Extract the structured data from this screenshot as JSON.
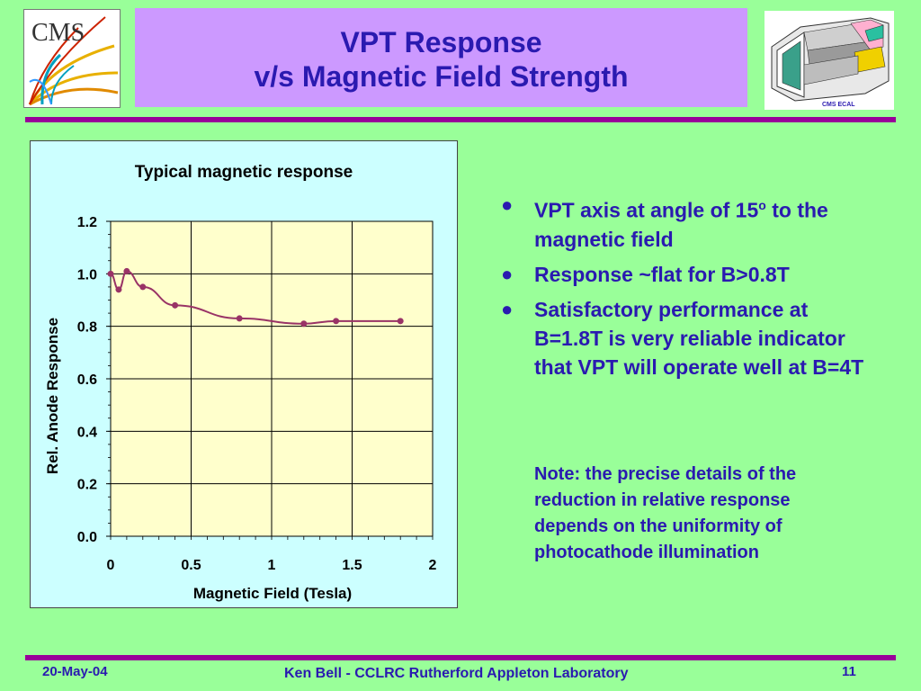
{
  "logo": {
    "text": "CMS",
    "icon": "cms-logo"
  },
  "header": {
    "title_line1": "VPT Response",
    "title_line2": "v/s Magnetic Field Strength",
    "image_icon": "cms-ecal-detector-image",
    "image_caption": "CMS ECAL"
  },
  "colors": {
    "background": "#99ff99",
    "title_box": "#cc99ff",
    "text": "#2a1ab0",
    "rule": "#990099",
    "chart_panel": "#ccffff",
    "plot_area": "#ffffcc",
    "series": "#993366"
  },
  "chart_data": {
    "type": "line",
    "title": "Typical magnetic response",
    "xlabel": "Magnetic Field (Tesla)",
    "ylabel": "Rel. Anode Response",
    "xlim": [
      0,
      2
    ],
    "ylim": [
      0.0,
      1.2
    ],
    "x_ticks": [
      "0",
      "0.5",
      "1",
      "1.5",
      "2"
    ],
    "y_ticks": [
      "0.0",
      "0.2",
      "0.4",
      "0.6",
      "0.8",
      "1.0",
      "1.2"
    ],
    "grid": true,
    "legend": "none",
    "series": [
      {
        "x": [
          0,
          0.05,
          0.1,
          0.2,
          0.4,
          0.8,
          1.2,
          1.4,
          1.8
        ],
        "y": [
          1.0,
          0.94,
          1.01,
          0.95,
          0.88,
          0.83,
          0.81,
          0.82,
          0.82
        ]
      }
    ]
  },
  "bullets": [
    {
      "text_before": "VPT axis at angle of 15",
      "sup": "o",
      "text_after": " to the magnetic field"
    },
    {
      "text_before": "Response ~flat for B>0.8T",
      "sup": "",
      "text_after": ""
    },
    {
      "text_before": "Satisfactory performance at B=1.8T is very reliable indicator that VPT will operate well at B=4T",
      "sup": "",
      "text_after": ""
    }
  ],
  "note": "Note: the precise details of the reduction in relative response depends on the uniformity of photocathode illumination",
  "footer": {
    "date": "20-May-04",
    "author": "Ken Bell - CCLRC Rutherford Appleton Laboratory",
    "page": "11"
  }
}
